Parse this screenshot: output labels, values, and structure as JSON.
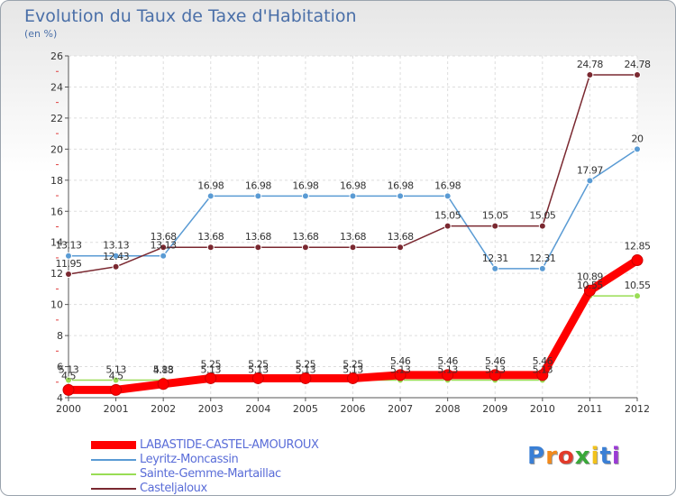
{
  "chart_data": {
    "type": "line",
    "title": "Evolution du Taux de Taxe d'Habitation",
    "subtitle": "(en %)",
    "x": [
      "2000",
      "2001",
      "2002",
      "2003",
      "2004",
      "2005",
      "2006",
      "2007",
      "2008",
      "2009",
      "2010",
      "2011",
      "2012"
    ],
    "ylim": [
      4,
      26
    ],
    "yticks": [
      "4",
      "6",
      "8",
      "10",
      "12",
      "14",
      "16",
      "18",
      "20",
      "22",
      "24",
      "26"
    ],
    "grid": true,
    "legend_position": "bottom-left",
    "series": [
      {
        "name": "LABASTIDE-CASTEL-AMOUROUX",
        "color": "#ff0000",
        "values": [
          4.5,
          4.5,
          4.88,
          5.25,
          5.25,
          5.25,
          5.25,
          5.46,
          5.46,
          5.46,
          5.46,
          10.89,
          12.85
        ],
        "labels": [
          "4.5",
          "4.5",
          "4.88",
          "5.25",
          "5.25",
          "5.25",
          "5.25",
          "5.46",
          "5.46",
          "5.46",
          "5.46",
          "10.89",
          "12.85"
        ]
      },
      {
        "name": "Leyritz-Moncassin",
        "color": "#5a9bd4",
        "values": [
          13.13,
          13.13,
          13.13,
          16.98,
          16.98,
          16.98,
          16.98,
          16.98,
          16.98,
          12.31,
          12.31,
          17.97,
          20
        ],
        "labels": [
          "13.13",
          "13.13",
          "13.13",
          "16.98",
          "16.98",
          "16.98",
          "16.98",
          "16.98",
          "16.98",
          "12.31",
          "12.31",
          "17.97",
          "20"
        ]
      },
      {
        "name": "Sainte-Gemme-Martaillac",
        "color": "#99dd55",
        "values": [
          5.13,
          5.13,
          5.13,
          5.13,
          5.13,
          5.13,
          5.13,
          5.13,
          5.13,
          5.13,
          5.13,
          10.55,
          10.55
        ],
        "labels": [
          "5.13",
          "5.13",
          "5.13",
          "5.13",
          "5.13",
          "5.13",
          "5.13",
          "5.13",
          "5.13",
          "5.13",
          "5.13",
          "10.55",
          "10.55"
        ]
      },
      {
        "name": "Casteljaloux",
        "color": "#7a2830",
        "values": [
          11.95,
          12.43,
          13.68,
          13.68,
          13.68,
          13.68,
          13.68,
          13.68,
          15.05,
          15.05,
          15.05,
          24.78,
          24.78
        ],
        "labels": [
          "11.95",
          "12.43",
          "13.68",
          "13.68",
          "13.68",
          "13.68",
          "13.68",
          "13.68",
          "15.05",
          "15.05",
          "15.05",
          "24.78",
          "24.78"
        ]
      }
    ]
  },
  "legend": {
    "items": [
      {
        "label": "LABASTIDE-CASTEL-AMOUROUX",
        "color": "#ff0000"
      },
      {
        "label": "Leyritz-Moncassin",
        "color": "#5a9bd4"
      },
      {
        "label": "Sainte-Gemme-Martaillac",
        "color": "#99dd55"
      },
      {
        "label": "Casteljaloux",
        "color": "#7a2830"
      }
    ]
  },
  "logo": {
    "letters": [
      "P",
      "r",
      "o",
      "x",
      "i",
      "t",
      "i"
    ],
    "colors": [
      "#3a7fd5",
      "#f28a1c",
      "#e23a2a",
      "#3aa83a",
      "#f2c21c",
      "#3a7fd5",
      "#9a3ad5"
    ]
  }
}
